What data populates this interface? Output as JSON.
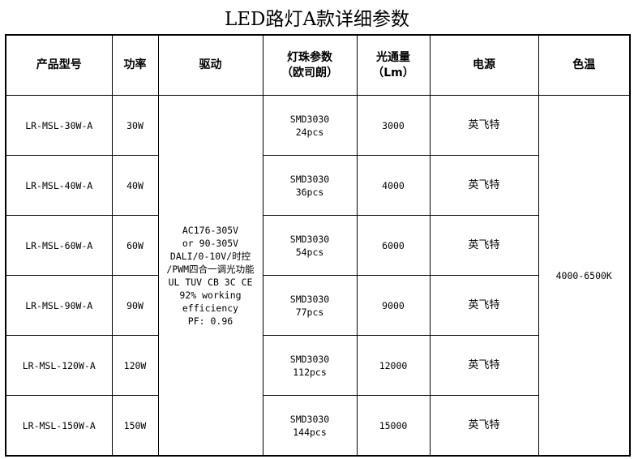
{
  "title": "LED路灯A款详细参数",
  "headers": [
    "产品型号",
    "功率",
    "驱动",
    "灯珠参数",
    "（欧司朗）",
    "光通量",
    "（Lm）",
    "电源",
    "色温"
  ],
  "driver": [
    "AC176-305V",
    "or 90-305V",
    "DALI/0-10V/时控",
    "/PWM四合一调光功能",
    "UL TUV CB 3C CE",
    "92% working",
    "efficiency",
    "PF: 0.96"
  ],
  "color_temp": "4000-6500K",
  "rows": [
    {
      "model": "LR-MSL-30W-A",
      "power": "30W",
      "chip": "SMD3030",
      "pcs": "24pcs",
      "lumen": "3000",
      "supply": "英飞特"
    },
    {
      "model": "LR-MSL-40W-A",
      "power": "40W",
      "chip": "SMD3030",
      "pcs": "36pcs",
      "lumen": "4000",
      "supply": "英飞特"
    },
    {
      "model": "LR-MSL-60W-A",
      "power": "60W",
      "chip": "SMD3030",
      "pcs": "54pcs",
      "lumen": "6000",
      "supply": "英飞特"
    },
    {
      "model": "LR-MSL-90W-A",
      "power": "90W",
      "chip": "SMD3030",
      "pcs": "77pcs",
      "lumen": "9000",
      "supply": "英飞特"
    },
    {
      "model": "LR-MSL-120W-A",
      "power": "120W",
      "chip": "SMD3030",
      "pcs": "112pcs",
      "lumen": "12000",
      "supply": "英飞特"
    },
    {
      "model": "LR-MSL-150W-A",
      "power": "150W",
      "chip": "SMD3030",
      "pcs": "144pcs",
      "lumen": "15000",
      "supply": "英飞特"
    }
  ]
}
